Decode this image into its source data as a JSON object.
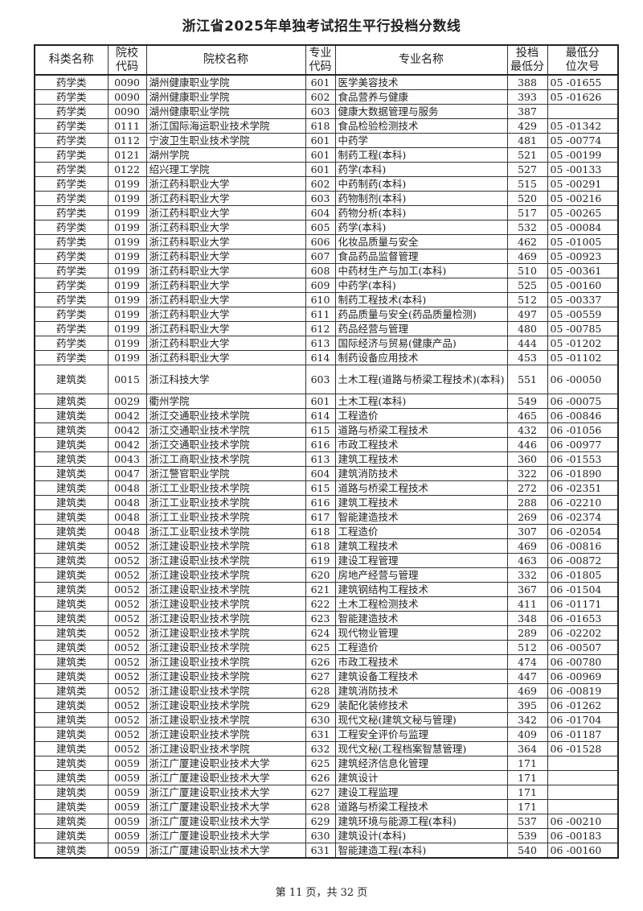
{
  "title": "浙江省2025年单独考试招生平行投档分数线",
  "columns": [
    "科类名称",
    "院校\n代码",
    "院校名称",
    "专业\n代码",
    "专业名称",
    "投档\n最低分",
    "最低分\n位次号"
  ],
  "rows": [
    [
      "药学类",
      "0090",
      "湖州健康职业学院",
      "601",
      "医学美容技术",
      "388",
      "05 -01655"
    ],
    [
      "药学类",
      "0090",
      "湖州健康职业学院",
      "602",
      "食品营养与健康",
      "393",
      "05 -01626"
    ],
    [
      "药学类",
      "0090",
      "湖州健康职业学院",
      "603",
      "健康大数据管理与服务",
      "387",
      ""
    ],
    [
      "药学类",
      "0111",
      "浙江国际海运职业技术学院",
      "618",
      "食品检验检测技术",
      "429",
      "05 -01342"
    ],
    [
      "药学类",
      "0112",
      "宁波卫生职业技术学院",
      "601",
      "中药学",
      "481",
      "05 -00774"
    ],
    [
      "药学类",
      "0121",
      "湖州学院",
      "601",
      "制药工程(本科)",
      "521",
      "05 -00199"
    ],
    [
      "药学类",
      "0122",
      "绍兴理工学院",
      "601",
      "药学(本科)",
      "527",
      "05 -00133"
    ],
    [
      "药学类",
      "0199",
      "浙江药科职业大学",
      "602",
      "中药制药(本科)",
      "515",
      "05 -00291"
    ],
    [
      "药学类",
      "0199",
      "浙江药科职业大学",
      "603",
      "药物制剂(本科)",
      "520",
      "05 -00216"
    ],
    [
      "药学类",
      "0199",
      "浙江药科职业大学",
      "604",
      "药物分析(本科)",
      "517",
      "05 -00265"
    ],
    [
      "药学类",
      "0199",
      "浙江药科职业大学",
      "605",
      "药学(本科)",
      "532",
      "05 -00084"
    ],
    [
      "药学类",
      "0199",
      "浙江药科职业大学",
      "606",
      "化妆品质量与安全",
      "462",
      "05 -01005"
    ],
    [
      "药学类",
      "0199",
      "浙江药科职业大学",
      "607",
      "食品药品监督管理",
      "469",
      "05 -00923"
    ],
    [
      "药学类",
      "0199",
      "浙江药科职业大学",
      "608",
      "中药材生产与加工(本科)",
      "510",
      "05 -00361"
    ],
    [
      "药学类",
      "0199",
      "浙江药科职业大学",
      "609",
      "中药学(本科)",
      "525",
      "05 -00160"
    ],
    [
      "药学类",
      "0199",
      "浙江药科职业大学",
      "610",
      "制药工程技术(本科)",
      "512",
      "05 -00337"
    ],
    [
      "药学类",
      "0199",
      "浙江药科职业大学",
      "611",
      "药品质量与安全(药品质量检测)",
      "497",
      "05 -00559"
    ],
    [
      "药学类",
      "0199",
      "浙江药科职业大学",
      "612",
      "药品经营与管理",
      "480",
      "05 -00785"
    ],
    [
      "药学类",
      "0199",
      "浙江药科职业大学",
      "613",
      "国际经济与贸易(健康产品)",
      "444",
      "05 -01202"
    ],
    [
      "药学类",
      "0199",
      "浙江药科职业大学",
      "614",
      "制药设备应用技术",
      "453",
      "05 -01102"
    ],
    [
      "建筑类",
      "0015",
      "浙江科技大学",
      "603",
      "土木工程(道路与桥梁工程技术)(本科)",
      "551",
      "06 -00050"
    ],
    [
      "建筑类",
      "0029",
      "衢州学院",
      "601",
      "土木工程(本科)",
      "549",
      "06 -00075"
    ],
    [
      "建筑类",
      "0042",
      "浙江交通职业技术学院",
      "614",
      "工程造价",
      "465",
      "06 -00846"
    ],
    [
      "建筑类",
      "0042",
      "浙江交通职业技术学院",
      "615",
      "道路与桥梁工程技术",
      "432",
      "06 -01056"
    ],
    [
      "建筑类",
      "0042",
      "浙江交通职业技术学院",
      "616",
      "市政工程技术",
      "446",
      "06 -00977"
    ],
    [
      "建筑类",
      "0043",
      "浙江工商职业技术学院",
      "613",
      "建筑工程技术",
      "360",
      "06 -01553"
    ],
    [
      "建筑类",
      "0047",
      "浙江警官职业学院",
      "604",
      "建筑消防技术",
      "322",
      "06 -01890"
    ],
    [
      "建筑类",
      "0048",
      "浙江工业职业技术学院",
      "615",
      "道路与桥梁工程技术",
      "272",
      "06 -02351"
    ],
    [
      "建筑类",
      "0048",
      "浙江工业职业技术学院",
      "616",
      "建筑工程技术",
      "288",
      "06 -02210"
    ],
    [
      "建筑类",
      "0048",
      "浙江工业职业技术学院",
      "617",
      "智能建造技术",
      "269",
      "06 -02374"
    ],
    [
      "建筑类",
      "0048",
      "浙江工业职业技术学院",
      "618",
      "工程造价",
      "307",
      "06 -02054"
    ],
    [
      "建筑类",
      "0052",
      "浙江建设职业技术学院",
      "618",
      "建筑工程技术",
      "469",
      "06 -00816"
    ],
    [
      "建筑类",
      "0052",
      "浙江建设职业技术学院",
      "619",
      "建设工程管理",
      "463",
      "06 -00872"
    ],
    [
      "建筑类",
      "0052",
      "浙江建设职业技术学院",
      "620",
      "房地产经营与管理",
      "332",
      "06 -01805"
    ],
    [
      "建筑类",
      "0052",
      "浙江建设职业技术学院",
      "621",
      "建筑钢结构工程技术",
      "367",
      "06 -01504"
    ],
    [
      "建筑类",
      "0052",
      "浙江建设职业技术学院",
      "622",
      "土木工程检测技术",
      "411",
      "06 -01171"
    ],
    [
      "建筑类",
      "0052",
      "浙江建设职业技术学院",
      "623",
      "智能建造技术",
      "348",
      "06 -01653"
    ],
    [
      "建筑类",
      "0052",
      "浙江建设职业技术学院",
      "624",
      "现代物业管理",
      "289",
      "06 -02202"
    ],
    [
      "建筑类",
      "0052",
      "浙江建设职业技术学院",
      "625",
      "工程造价",
      "512",
      "06 -00507"
    ],
    [
      "建筑类",
      "0052",
      "浙江建设职业技术学院",
      "626",
      "市政工程技术",
      "474",
      "06 -00780"
    ],
    [
      "建筑类",
      "0052",
      "浙江建设职业技术学院",
      "627",
      "建筑设备工程技术",
      "447",
      "06 -00969"
    ],
    [
      "建筑类",
      "0052",
      "浙江建设职业技术学院",
      "628",
      "建筑消防技术",
      "469",
      "06 -00819"
    ],
    [
      "建筑类",
      "0052",
      "浙江建设职业技术学院",
      "629",
      "装配化装修技术",
      "395",
      "06 -01262"
    ],
    [
      "建筑类",
      "0052",
      "浙江建设职业技术学院",
      "630",
      "现代文秘(建筑文秘与管理)",
      "342",
      "06 -01704"
    ],
    [
      "建筑类",
      "0052",
      "浙江建设职业技术学院",
      "631",
      "工程安全评价与监理",
      "409",
      "06 -01187"
    ],
    [
      "建筑类",
      "0052",
      "浙江建设职业技术学院",
      "632",
      "现代文秘(工程档案智慧管理)",
      "364",
      "06 -01528"
    ],
    [
      "建筑类",
      "0059",
      "浙江广厦建设职业技术大学",
      "625",
      "建筑经济信息化管理",
      "171",
      ""
    ],
    [
      "建筑类",
      "0059",
      "浙江广厦建设职业技术大学",
      "626",
      "建筑设计",
      "171",
      ""
    ],
    [
      "建筑类",
      "0059",
      "浙江广厦建设职业技术大学",
      "627",
      "建设工程监理",
      "171",
      ""
    ],
    [
      "建筑类",
      "0059",
      "浙江广厦建设职业技术大学",
      "628",
      "道路与桥梁工程技术",
      "171",
      ""
    ],
    [
      "建筑类",
      "0059",
      "浙江广厦建设职业技术大学",
      "629",
      "建筑环境与能源工程(本科)",
      "537",
      "06 -00210"
    ],
    [
      "建筑类",
      "0059",
      "浙江广厦建设职业技术大学",
      "630",
      "建筑设计(本科)",
      "539",
      "06 -00183"
    ],
    [
      "建筑类",
      "0059",
      "浙江广厦建设职业技术大学",
      "631",
      "智能建造工程(本科)",
      "540",
      "06 -00160"
    ]
  ],
  "footer": "第 11 页，共 32 页"
}
